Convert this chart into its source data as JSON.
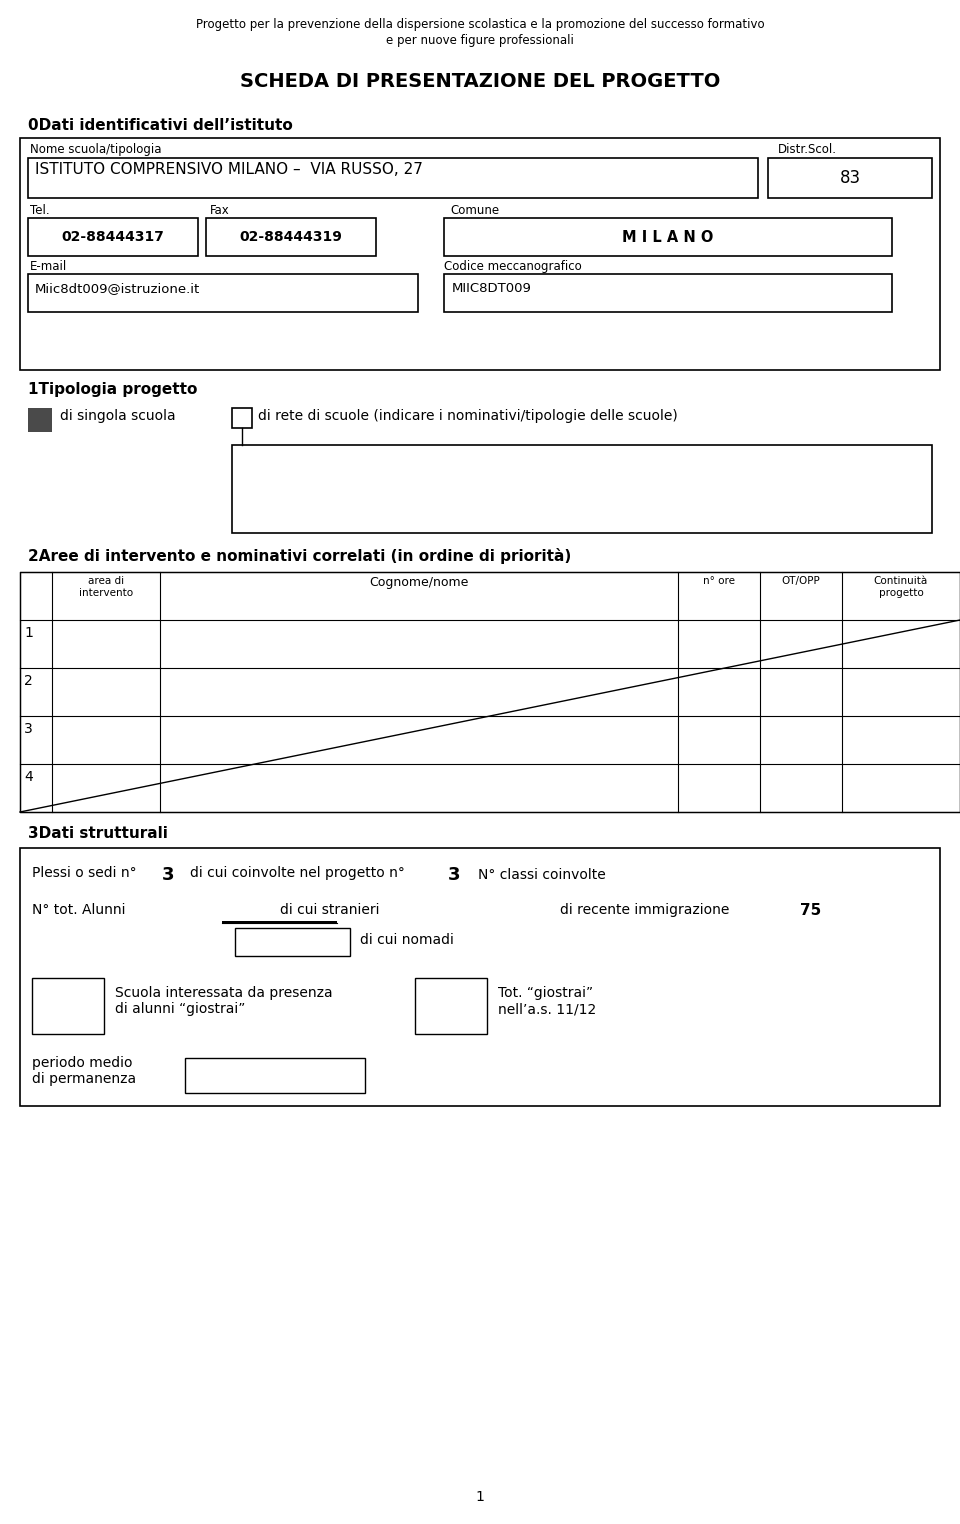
{
  "bg_color": "#ffffff",
  "header_line1": "Progetto per la prevenzione della dispersione scolastica e la promozione del successo formativo",
  "header_line2": "e per nuove figure professionali",
  "title": "SCHEDA DI PRESENTAZIONE DEL PROGETTO",
  "section0": "0Dati identificativi dell’istituto",
  "label_nome": "Nome scuola/tipologia",
  "label_distr": "Distr.Scol.",
  "istituto": "ISTITUTO COMPRENSIVO MILANO –  VIA RUSSO, 27",
  "distr_val": "83",
  "label_tel": "Tel.",
  "label_fax": "Fax",
  "label_comune": "Comune",
  "tel_val": "02-88444317",
  "fax_val": "02-88444319",
  "comune_val": "M I L A N O",
  "label_email": "E-mail",
  "label_codice": "Codice meccanografico",
  "email_val": "Miic8dt009@istruzione.it",
  "codice_val": "MIIC8DT009",
  "section1": "1Tipologia progetto",
  "tipologia_left": "di singola scuola",
  "tipologia_right": "di rete di scuole (indicare i nominativi/tipologie delle scuole)",
  "section2": "2Aree di intervento e nominativi correlati (in ordine di priorità)",
  "table_headers": [
    "area di\nintervento",
    "Cognome/nome",
    "n° ore",
    "OT/OPP",
    "Continuità\nprogetto"
  ],
  "table_rows": [
    "1",
    "2",
    "3",
    "4"
  ],
  "section3": "3Dati strutturali",
  "plessi_text": "Plessi o sedi n°",
  "plessi_val": "3",
  "coinvolte_text": "di cui coinvolte nel progetto n°",
  "coinvolte_val": "3",
  "classi_text": "N° classi coinvolte",
  "alunni_text": "N° tot. Alunni",
  "stranieri_text": "di cui stranieri",
  "immigrazione_text": "di recente immigrazione",
  "immigrazione_val": "75",
  "nomadi_text": "di cui nomadi",
  "scuola_text": "Scuola interessata da presenza\ndi alunni “giostrai”",
  "giostrai_text": "Tot. “giostrai”\nnell’a.s. 11/12",
  "periodo_text": "periodo medio\ndi permanenza",
  "page_num": "1"
}
